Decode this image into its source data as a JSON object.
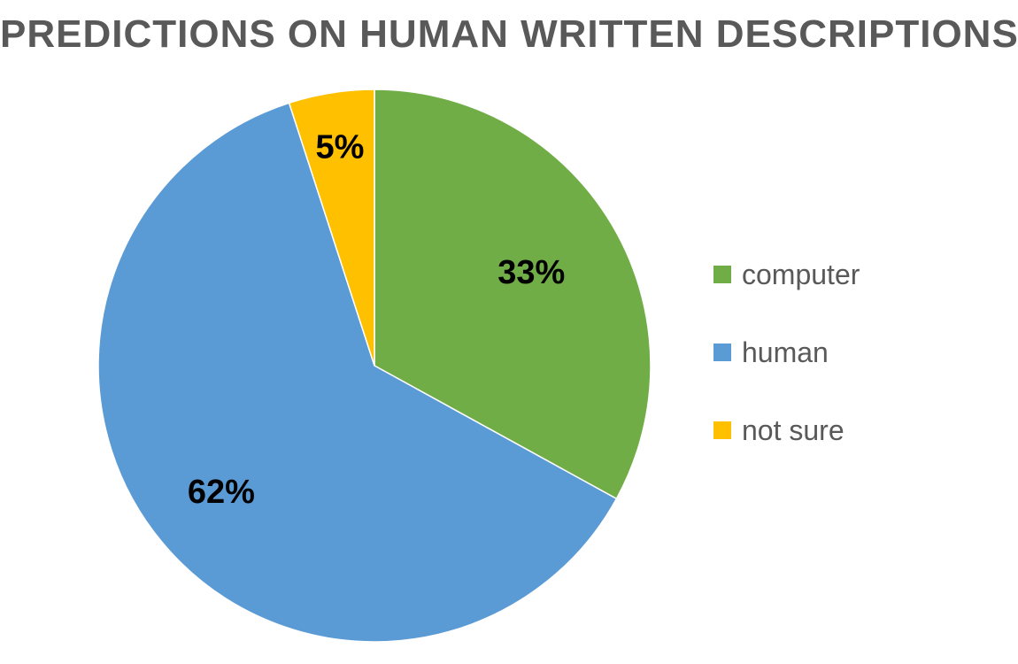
{
  "chart_data": {
    "type": "pie",
    "title": "PREDICTIONS ON HUMAN WRITTEN DESCRIPTIONS",
    "categories": [
      "computer",
      "human",
      "not sure"
    ],
    "values": [
      33,
      62,
      5
    ],
    "data_labels": [
      "33%",
      "62%",
      "5%"
    ],
    "colors": [
      "#70ad47",
      "#5b9bd5",
      "#ffc000"
    ],
    "legend_position": "right"
  }
}
